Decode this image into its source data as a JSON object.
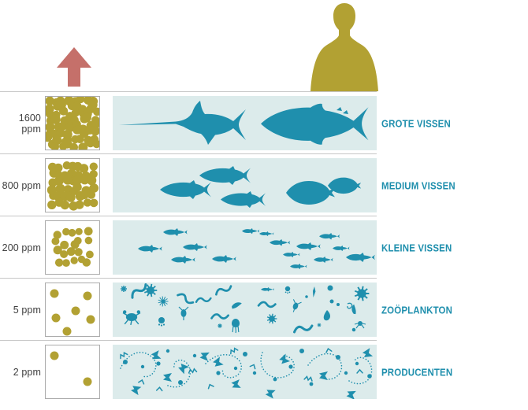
{
  "colors": {
    "olive": "#b2a133",
    "salmon": "#c5706a",
    "organism_teal": "#1f8fad",
    "band_background": "#dcebeb",
    "label_teal": "#1f8fad",
    "divider_gray": "#c6c6c6",
    "box_border_gray": "#ababab",
    "ppm_text": "#3f3f3f"
  },
  "header": {
    "human_icon": "human-silhouette",
    "arrow_icon": "upward-arrow"
  },
  "rows": [
    {
      "ppm_label": "1600 ppm",
      "ppm_value": 1600,
      "trophic_label": "GROTE VISSEN",
      "dot_count": 64,
      "organisms": [
        {
          "type": "swordfish",
          "count": 1
        },
        {
          "type": "tuna",
          "count": 1
        }
      ]
    },
    {
      "ppm_label": "800 ppm",
      "ppm_value": 800,
      "trophic_label": "MEDIUM VISSEN",
      "dot_count": 42,
      "organisms": [
        {
          "type": "medium-fish",
          "count": 3
        },
        {
          "type": "round-fish",
          "count": 2
        }
      ]
    },
    {
      "ppm_label": "200 ppm",
      "ppm_value": 200,
      "trophic_label": "KLEINE VISSEN",
      "dot_count": 20,
      "organisms": [
        {
          "type": "small-fish",
          "count": 15
        }
      ]
    },
    {
      "ppm_label": "5 ppm",
      "ppm_value": 5,
      "trophic_label": "ZOÖPLANKTON",
      "dot_count": 6,
      "organisms": [
        {
          "type": "zooplankton",
          "count": 30
        }
      ]
    },
    {
      "ppm_label": "2 ppm",
      "ppm_value": 2,
      "trophic_label": "PRODUCENTEN",
      "dot_count": 2,
      "organisms": [
        {
          "type": "phytoplankton-producers",
          "count": 40
        }
      ]
    }
  ]
}
